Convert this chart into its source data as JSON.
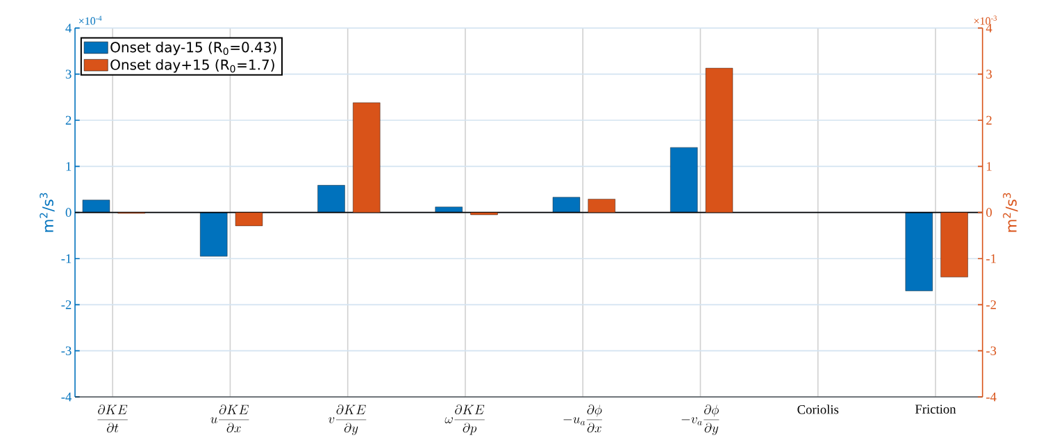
{
  "chart_data": {
    "type": "bar",
    "categories": [
      "\\frac{\\partial KE}{\\partial t}",
      "u\\frac{\\partial KE}{\\partial x}",
      "v\\frac{\\partial KE}{\\partial y}",
      "\\omega\\frac{\\partial KE}{\\partial p}",
      "-u_a\\frac{\\partial \\phi}{\\partial x}",
      "-v_a\\frac{\\partial \\phi}{\\partial y}",
      "Coriolis",
      "Friction"
    ],
    "series": [
      {
        "name": "Onset day-15 (R$_{0}$=0.43)",
        "color": "#0072bd",
        "values": [
          0.27,
          -0.95,
          0.59,
          0.12,
          0.33,
          1.41,
          null,
          -1.7
        ]
      },
      {
        "name": "Onset day+15 (R$_{0}$=1.7)",
        "color": "#d95319",
        "axis": "y2",
        "values": [
          -0.02,
          -0.29,
          2.38,
          -0.05,
          0.29,
          3.13,
          null,
          -1.4
        ]
      }
    ],
    "ylabel": "m$^{2}$/s$^{3}$",
    "y2label": "m$^{2}$/s$^{3}$",
    "ylim": [
      -4,
      4
    ],
    "yticks": [
      -4,
      -3,
      -2,
      -1,
      0,
      1,
      2,
      3,
      4
    ],
    "y2lim": [
      -4,
      4
    ],
    "y2ticks": [
      -4,
      -3,
      -2,
      -1,
      0,
      1,
      2,
      3,
      4
    ],
    "grid": true,
    "legend": "top left",
    "annotations": [
      "×10$^{-4}$",
      "×10$^{-3}$"
    ]
  }
}
